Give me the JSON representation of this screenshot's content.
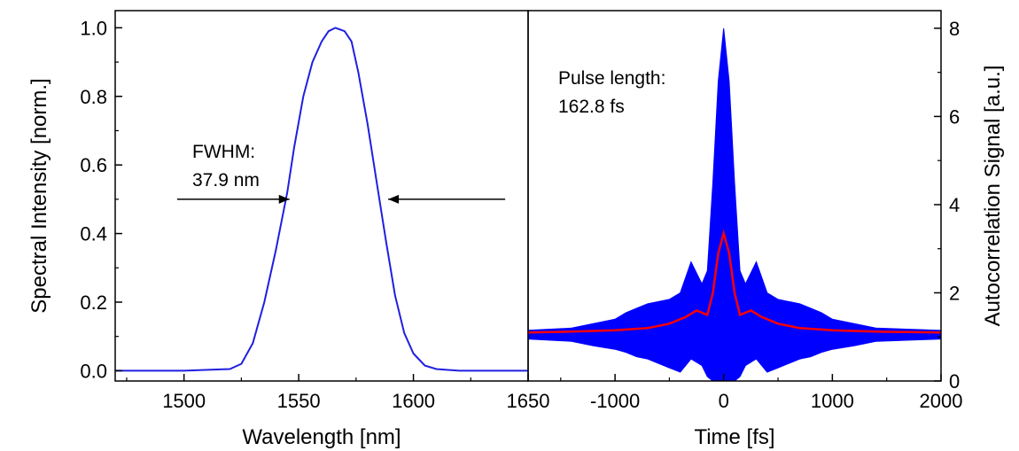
{
  "chart_data": [
    {
      "type": "line",
      "xlabel": "Wavelength [nm]",
      "ylabel": "Spectral Intensity [norm.]",
      "xlim": [
        1470,
        1650
      ],
      "ylim": [
        -0.03,
        1.05
      ],
      "x_ticks": [
        1500,
        1550,
        1600,
        1650
      ],
      "y_ticks": [
        0.0,
        0.2,
        0.4,
        0.6,
        0.8,
        1.0
      ],
      "x_tick_labels": [
        "1500",
        "1550",
        "1600",
        "1650"
      ],
      "y_tick_labels": [
        "0.0",
        "0.2",
        "0.4",
        "0.6",
        "0.8",
        "1.0"
      ],
      "series": [
        {
          "color": "#1f1fe0",
          "x": [
            1470,
            1500,
            1520,
            1525,
            1530,
            1535,
            1540,
            1545,
            1548,
            1552,
            1556,
            1560,
            1563,
            1566,
            1570,
            1573,
            1576,
            1580,
            1584,
            1588,
            1592,
            1596,
            1600,
            1605,
            1610,
            1620,
            1650
          ],
          "y": [
            0.0,
            0.0,
            0.005,
            0.02,
            0.08,
            0.2,
            0.35,
            0.52,
            0.65,
            0.8,
            0.9,
            0.96,
            0.99,
            1.0,
            0.99,
            0.96,
            0.87,
            0.72,
            0.55,
            0.38,
            0.22,
            0.11,
            0.05,
            0.015,
            0.005,
            0.0,
            0.0
          ]
        }
      ],
      "annotation": {
        "text_line1": "FWHM:",
        "text_line2": "37.9 nm",
        "y": 0.5,
        "arrow_left_from": 1497,
        "arrow_left_to": 1546,
        "arrow_right_from": 1640,
        "arrow_right_to": 1589
      }
    },
    {
      "type": "line",
      "xlabel": "Time [fs]",
      "ylabel": "Autocorrelation Signal [a.u.]",
      "xlim": [
        -1800,
        2000
      ],
      "ylim": [
        0,
        8.4
      ],
      "y_axis_side": "right",
      "x_ticks": [
        -1000,
        0,
        1000,
        2000
      ],
      "y_ticks": [
        0,
        2,
        4,
        6,
        8
      ],
      "x_tick_labels": [
        "-1000",
        "0",
        "1000",
        "2000"
      ],
      "y_tick_labels": [
        "0",
        "2",
        "4",
        "6",
        "8"
      ],
      "series": [
        {
          "color": "#0000ff",
          "kind": "interferometric envelope",
          "t": [
            -1800,
            -1400,
            -1200,
            -1000,
            -900,
            -800,
            -700,
            -600,
            -500,
            -400,
            -300,
            -200,
            -150,
            -100,
            -50,
            0,
            50,
            100,
            150,
            200,
            300,
            400,
            500,
            600,
            700,
            800,
            900,
            1000,
            1200,
            1400,
            2000
          ],
          "upper": [
            1.15,
            1.2,
            1.3,
            1.4,
            1.55,
            1.65,
            1.75,
            1.8,
            1.85,
            2.0,
            2.7,
            2.2,
            2.5,
            4.5,
            6.8,
            8.0,
            6.8,
            4.5,
            2.5,
            2.2,
            2.7,
            2.0,
            1.85,
            1.8,
            1.75,
            1.65,
            1.55,
            1.4,
            1.3,
            1.2,
            1.15
          ],
          "lower": [
            0.95,
            0.9,
            0.8,
            0.72,
            0.65,
            0.55,
            0.5,
            0.4,
            0.3,
            0.2,
            0.5,
            0.35,
            0.1,
            0.0,
            0.0,
            0.0,
            0.0,
            0.0,
            0.1,
            0.35,
            0.5,
            0.2,
            0.3,
            0.4,
            0.5,
            0.55,
            0.65,
            0.72,
            0.8,
            0.9,
            0.95
          ]
        },
        {
          "color": "#ff0000",
          "kind": "intensity autocorrelation",
          "t": [
            -1800,
            -1400,
            -1000,
            -700,
            -500,
            -350,
            -250,
            -150,
            -100,
            -50,
            0,
            50,
            100,
            150,
            250,
            350,
            500,
            700,
            1000,
            1400,
            2000
          ],
          "y": [
            1.1,
            1.12,
            1.15,
            1.2,
            1.3,
            1.45,
            1.6,
            1.5,
            2.0,
            2.9,
            3.35,
            2.9,
            2.0,
            1.5,
            1.6,
            1.45,
            1.3,
            1.2,
            1.15,
            1.12,
            1.1
          ]
        }
      ],
      "annotation": {
        "text_line1": "Pulse length:",
        "text_line2": "162.8 fs"
      }
    }
  ]
}
